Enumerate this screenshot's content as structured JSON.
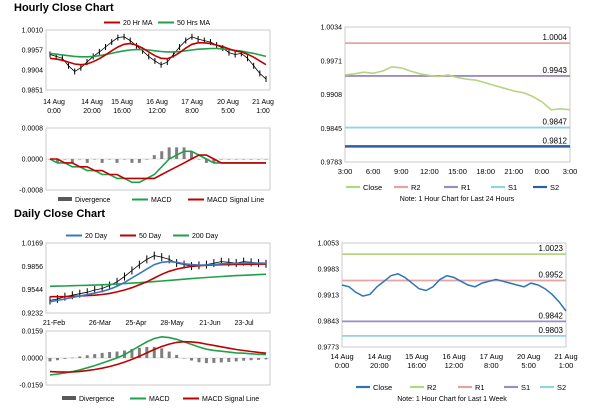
{
  "sections": {
    "hourly_title": "Hourly Close Chart",
    "daily_title": "Daily Close Chart"
  },
  "chart_data": [
    {
      "id": "hourly_price",
      "type": "line",
      "legend": [
        "20 Hr MA",
        "50 Hrs MA"
      ],
      "colors": {
        "price": "#000000",
        "ma20": "#c00000",
        "ma50": "#21a04a"
      },
      "ylim": [
        0.9851,
        1.001
      ],
      "yticks": [
        "1.0010",
        "0.9957",
        "0.9904",
        "0.9851"
      ],
      "xticks": [
        "14 Aug 0:00",
        "14 Aug 20:00",
        "15 Aug 16:00",
        "16 Aug 12:00",
        "17 Aug 8:00",
        "20 Aug 5:00",
        "21 Aug 1:00"
      ],
      "price": [
        0.9945,
        0.994,
        0.9935,
        0.9915,
        0.99,
        0.991,
        0.9925,
        0.994,
        0.9952,
        0.9965,
        0.9978,
        0.999,
        0.9992,
        0.9982,
        0.9968,
        0.9955,
        0.994,
        0.9928,
        0.9918,
        0.9925,
        0.9945,
        0.9965,
        0.9982,
        0.9992,
        0.9986,
        0.9982,
        0.9978,
        0.997,
        0.9962,
        0.995,
        0.9945,
        0.9948,
        0.9935,
        0.9915,
        0.9895,
        0.988
      ],
      "ma20": [
        0.9935,
        0.9933,
        0.993,
        0.9925,
        0.992,
        0.9918,
        0.992,
        0.9926,
        0.9934,
        0.9944,
        0.9955,
        0.9965,
        0.9972,
        0.9974,
        0.997,
        0.9962,
        0.9952,
        0.9942,
        0.9935,
        0.9934,
        0.994,
        0.995,
        0.9962,
        0.9972,
        0.9976,
        0.9976,
        0.9974,
        0.997,
        0.9966,
        0.996,
        0.9955,
        0.9952,
        0.9946,
        0.9938,
        0.9928,
        0.9918
      ],
      "ma50": [
        0.9948,
        0.9946,
        0.9944,
        0.9942,
        0.994,
        0.9939,
        0.9939,
        0.994,
        0.9942,
        0.9945,
        0.9948,
        0.9952,
        0.9955,
        0.9957,
        0.9958,
        0.9958,
        0.9957,
        0.9955,
        0.9953,
        0.9952,
        0.9952,
        0.9953,
        0.9955,
        0.9957,
        0.9959,
        0.996,
        0.9961,
        0.9961,
        0.996,
        0.9958,
        0.9956,
        0.9954,
        0.9951,
        0.9948,
        0.9944,
        0.994
      ]
    },
    {
      "id": "hourly_macd",
      "type": "bar+line",
      "legend": [
        "Divergence",
        "MACD",
        "MACD Signal Line"
      ],
      "colors": {
        "divergence": "#7f7f7f",
        "macd": "#21a04a",
        "signal": "#c00000"
      },
      "ylim": [
        -0.0008,
        0.0008
      ],
      "yticks": [
        "0.0008",
        "0.0000",
        "-0.0008"
      ],
      "macd": [
        0.0,
        -0.0001,
        -0.0001,
        -0.0002,
        -0.0002,
        -0.0003,
        -0.0003,
        -0.0004,
        -0.0004,
        -0.0005,
        -0.0005,
        -0.0006,
        -0.0006,
        -0.0005,
        -0.0004,
        -0.0002,
        0.0,
        0.0001,
        0.0002,
        0.0002,
        0.0001,
        0.0,
        -0.0001,
        -0.0001,
        -0.0001,
        -0.0001,
        -0.0001,
        -0.0001,
        -0.0001,
        -0.0001
      ],
      "signal": [
        0.0,
        0.0,
        -0.0001,
        -0.0001,
        -0.0002,
        -0.0002,
        -0.0003,
        -0.0003,
        -0.0004,
        -0.0004,
        -0.0005,
        -0.0005,
        -0.0005,
        -0.0005,
        -0.0005,
        -0.0004,
        -0.0003,
        -0.0002,
        -0.0001,
        0.0,
        0.0001,
        0.0001,
        0.0,
        -0.0001,
        -0.0001,
        -0.0001,
        -0.0001,
        -0.0001,
        -0.0001,
        -0.0001
      ],
      "divergence": [
        0.0,
        -0.0001,
        0.0,
        -0.0001,
        0.0,
        -0.0001,
        0.0,
        -0.0001,
        0.0,
        -0.0001,
        0.0,
        -0.0001,
        -0.0001,
        0.0,
        0.0001,
        0.0002,
        0.0003,
        0.0003,
        0.0003,
        0.0002,
        0.0,
        -0.0001,
        -0.0001,
        0.0,
        0.0,
        0.0,
        0.0,
        0.0,
        0.0,
        0.0
      ]
    },
    {
      "id": "hourly_24h",
      "type": "line",
      "legend": [
        "Close",
        "R2",
        "R1",
        "S1",
        "S2"
      ],
      "colors": {
        "close": "#b5d582",
        "R2": "#e6a3a3",
        "R1": "#9b8dc4",
        "S1": "#92d2e2",
        "S2": "#2e5e9e"
      },
      "ylim": [
        0.9783,
        1.0034
      ],
      "yticks": [
        "1.0034",
        "0.9971",
        "0.9908",
        "0.9845",
        "0.9783"
      ],
      "xticks": [
        "3:00",
        "6:00",
        "9:00",
        "12:00",
        "15:00",
        "18:00",
        "21:00",
        "0:00",
        "3:00"
      ],
      "levels": {
        "R2": 1.0004,
        "R1": 0.9943,
        "S1": 0.9847,
        "S2": 0.9812
      },
      "level_labels": [
        "1.0004",
        "0.9943",
        "0.9847",
        "0.9812"
      ],
      "close": [
        0.9945,
        0.9947,
        0.995,
        0.9948,
        0.9952,
        0.996,
        0.9958,
        0.9952,
        0.9947,
        0.9944,
        0.9942,
        0.9945,
        0.994,
        0.9937,
        0.9935,
        0.993,
        0.9925,
        0.992,
        0.9915,
        0.9912,
        0.9905,
        0.9895,
        0.988,
        0.9882,
        0.988
      ],
      "note": "Note: 1 Hour Chart for Last 24 Hours"
    },
    {
      "id": "daily_price",
      "type": "line",
      "legend": [
        "20 Day",
        "50 Day",
        "200 Day"
      ],
      "colors": {
        "price": "#000000",
        "ma20": "#3b78c2",
        "ma50": "#c00000",
        "ma200": "#21a04a"
      },
      "ylim": [
        0.9232,
        1.0169
      ],
      "yticks": [
        "1.0169",
        "0.9856",
        "0.9544",
        "0.9232"
      ],
      "xticks": [
        "21-Feb",
        "26-Mar",
        "25-Apr",
        "28-May",
        "21-Jun",
        "23-Jul"
      ],
      "price": [
        0.94,
        0.942,
        0.945,
        0.947,
        0.949,
        0.951,
        0.954,
        0.956,
        0.96,
        0.965,
        0.972,
        0.98,
        0.988,
        0.995,
        1.0,
        0.998,
        0.995,
        0.99,
        0.988,
        0.986,
        0.987,
        0.988,
        0.99,
        0.992,
        0.991,
        0.99,
        0.992,
        0.991,
        0.99,
        0.989
      ],
      "ma20": [
        0.938,
        0.94,
        0.942,
        0.944,
        0.946,
        0.948,
        0.95,
        0.952,
        0.955,
        0.959,
        0.964,
        0.97,
        0.976,
        0.982,
        0.988,
        0.991,
        0.992,
        0.991,
        0.989,
        0.988,
        0.9875,
        0.9875,
        0.988,
        0.989,
        0.9895,
        0.9895,
        0.99,
        0.99,
        0.99,
        0.9898
      ],
      "ma50": [
        0.945,
        0.945,
        0.9452,
        0.9455,
        0.946,
        0.9465,
        0.947,
        0.948,
        0.9495,
        0.9515,
        0.954,
        0.957,
        0.961,
        0.965,
        0.97,
        0.975,
        0.979,
        0.982,
        0.984,
        0.9855,
        0.9865,
        0.987,
        0.9875,
        0.9878,
        0.988,
        0.9882,
        0.9884,
        0.9885,
        0.9886,
        0.9887
      ],
      "ma200": [
        0.959,
        0.9592,
        0.9594,
        0.9597,
        0.96,
        0.9603,
        0.9606,
        0.961,
        0.9615,
        0.962,
        0.9626,
        0.9632,
        0.9638,
        0.9645,
        0.9652,
        0.966,
        0.9668,
        0.9676,
        0.9684,
        0.9692,
        0.97,
        0.9707,
        0.9714,
        0.972,
        0.9726,
        0.9732,
        0.9737,
        0.9742,
        0.9746,
        0.975
      ]
    },
    {
      "id": "daily_macd",
      "type": "bar+line",
      "legend": [
        "Divergence",
        "MACD",
        "MACD Signal Line"
      ],
      "colors": {
        "divergence": "#7f7f7f",
        "macd": "#21a04a",
        "signal": "#c00000"
      },
      "ylim": [
        -0.0159,
        0.0159
      ],
      "yticks": [
        "0.0159",
        "0.0000",
        "-0.0159"
      ],
      "macd": [
        -0.01,
        -0.0095,
        -0.0088,
        -0.008,
        -0.007,
        -0.0058,
        -0.0045,
        -0.003,
        -0.0015,
        0.0,
        0.002,
        0.0045,
        0.007,
        0.0095,
        0.0115,
        0.0125,
        0.012,
        0.011,
        0.0095,
        0.008,
        0.0065,
        0.0052,
        0.0045,
        0.004,
        0.0035,
        0.003,
        0.0028,
        0.0025,
        0.0022,
        0.002
      ],
      "signal": [
        -0.008,
        -0.0082,
        -0.0083,
        -0.0082,
        -0.0079,
        -0.0074,
        -0.0068,
        -0.006,
        -0.005,
        -0.0038,
        -0.0024,
        -0.0008,
        0.001,
        0.003,
        0.005,
        0.0068,
        0.0082,
        0.0092,
        0.0096,
        0.0095,
        0.009,
        0.0082,
        0.0074,
        0.0066,
        0.0058,
        0.005,
        0.0044,
        0.0038,
        0.0033,
        0.0028
      ],
      "divergence": [
        -0.002,
        -0.0013,
        -0.0005,
        0.0002,
        0.0009,
        0.0016,
        0.0023,
        0.003,
        0.0035,
        0.0038,
        0.0044,
        0.0053,
        0.006,
        0.0065,
        0.0065,
        0.0057,
        0.0038,
        0.0018,
        -0.0001,
        -0.0015,
        -0.0025,
        -0.003,
        -0.0029,
        -0.0026,
        -0.0023,
        -0.002,
        -0.0016,
        -0.0013,
        -0.0011,
        -0.0008
      ]
    },
    {
      "id": "daily_week",
      "type": "line",
      "legend": [
        "Close",
        "R2",
        "R1",
        "S1",
        "S2"
      ],
      "colors": {
        "close": "#2e74b5",
        "R2": "#b5d582",
        "R1": "#e6a3a3",
        "S1": "#9b8dc4",
        "S2": "#92d2e2"
      },
      "ylim": [
        0.9773,
        1.0053
      ],
      "yticks": [
        "1.0053",
        "0.9983",
        "0.9913",
        "0.9843",
        "0.9773"
      ],
      "xticks": [
        "14 Aug 0:00",
        "14 Aug 20:00",
        "15 Aug 16:00",
        "16 Aug 12:00",
        "17 Aug 8:00",
        "20 Aug 5:00",
        "21 Aug 1:00"
      ],
      "levels": {
        "R2": 1.0023,
        "R1": 0.9952,
        "S1": 0.9842,
        "S2": 0.9803
      },
      "level_labels": [
        "1.0023",
        "0.9952",
        "0.9842",
        "0.9803"
      ],
      "close": [
        0.994,
        0.9935,
        0.992,
        0.991,
        0.9915,
        0.9935,
        0.995,
        0.9965,
        0.997,
        0.996,
        0.9945,
        0.993,
        0.9925,
        0.9935,
        0.9955,
        0.9965,
        0.996,
        0.995,
        0.994,
        0.9935,
        0.9945,
        0.995,
        0.9955,
        0.995,
        0.9945,
        0.994,
        0.9935,
        0.9945,
        0.994,
        0.993,
        0.9915,
        0.9895,
        0.987
      ],
      "note": "Note: 1 Hour Chart for Last 1 Week"
    }
  ]
}
